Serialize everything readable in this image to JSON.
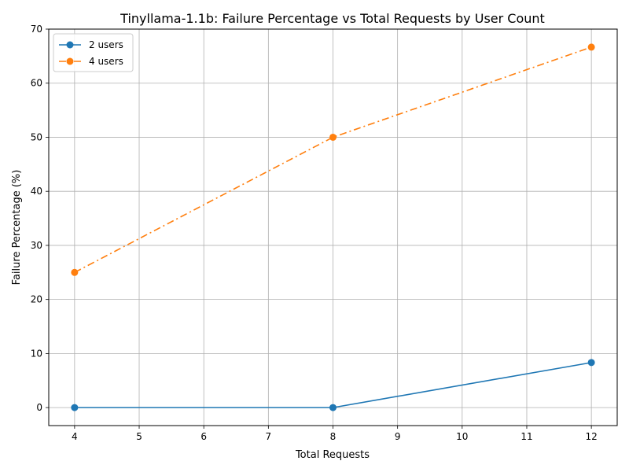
{
  "chart_data": {
    "type": "line",
    "title": "Tinyllama-1.1b: Failure Percentage vs Total Requests by User Count",
    "xlabel": "Total Requests",
    "ylabel": "Failure Percentage (%)",
    "xlim": [
      3.6,
      12.4
    ],
    "ylim": [
      -3.33,
      70
    ],
    "xticks": [
      4,
      5,
      6,
      7,
      8,
      9,
      10,
      11,
      12
    ],
    "yticks": [
      0,
      10,
      20,
      30,
      40,
      50,
      60,
      70
    ],
    "grid": true,
    "legend_position": "top-left",
    "series": [
      {
        "name": "2 users",
        "color": "#1f77b4",
        "linestyle": "solid",
        "marker": "circle",
        "x": [
          4,
          8,
          12
        ],
        "y": [
          0,
          0,
          8.33
        ]
      },
      {
        "name": "4 users",
        "color": "#ff7f0e",
        "linestyle": "dashdot",
        "marker": "circle",
        "x": [
          4,
          8,
          12
        ],
        "y": [
          25,
          50,
          66.67
        ]
      }
    ]
  }
}
